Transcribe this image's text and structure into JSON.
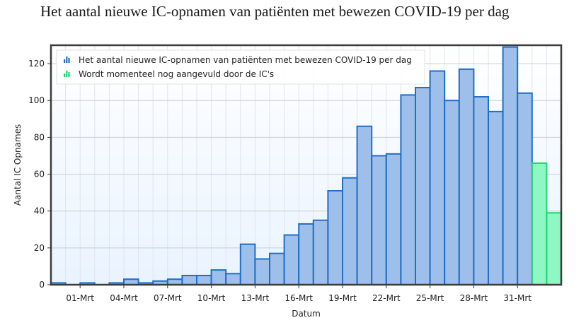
{
  "chart_data": {
    "type": "bar",
    "title": "Het aantal nieuwe IC-opnamen van patiënten met bewezen COVID-19 per dag",
    "xlabel": "Datum",
    "ylabel": "Aantal IC Opnames",
    "ylim": [
      0,
      130
    ],
    "yticks": [
      0,
      20,
      40,
      60,
      80,
      100,
      120
    ],
    "xtick_labels": [
      "01-Mrt",
      "04-Mrt",
      "07-Mrt",
      "10-Mrt",
      "13-Mrt",
      "16-Mrt",
      "19-Mrt",
      "22-Mrt",
      "25-Mrt",
      "28-Mrt",
      "31-Mrt"
    ],
    "legend_position": "top-left",
    "grid": true,
    "series": [
      {
        "name": "Het aantal nieuwe IC-opnamen van patiënten met bewezen COVID-19 per dag",
        "color": "#9dbfe9",
        "edge_color": "#1f6fc8",
        "values": [
          1,
          0,
          1,
          0,
          1,
          3,
          1,
          2,
          3,
          5,
          5,
          8,
          6,
          22,
          14,
          17,
          27,
          33,
          35,
          51,
          58,
          86,
          70,
          71,
          103,
          107,
          116,
          100,
          117,
          102,
          94,
          129,
          104,
          null,
          null
        ]
      },
      {
        "name": "Wordt momenteel nog aangevuld door de IC's",
        "color": "#8ef7c4",
        "edge_color": "#22d16b",
        "values": [
          null,
          null,
          null,
          null,
          null,
          null,
          null,
          null,
          null,
          null,
          null,
          null,
          null,
          null,
          null,
          null,
          null,
          null,
          null,
          null,
          null,
          null,
          null,
          null,
          null,
          null,
          null,
          null,
          null,
          null,
          null,
          null,
          null,
          66,
          39
        ]
      }
    ]
  }
}
